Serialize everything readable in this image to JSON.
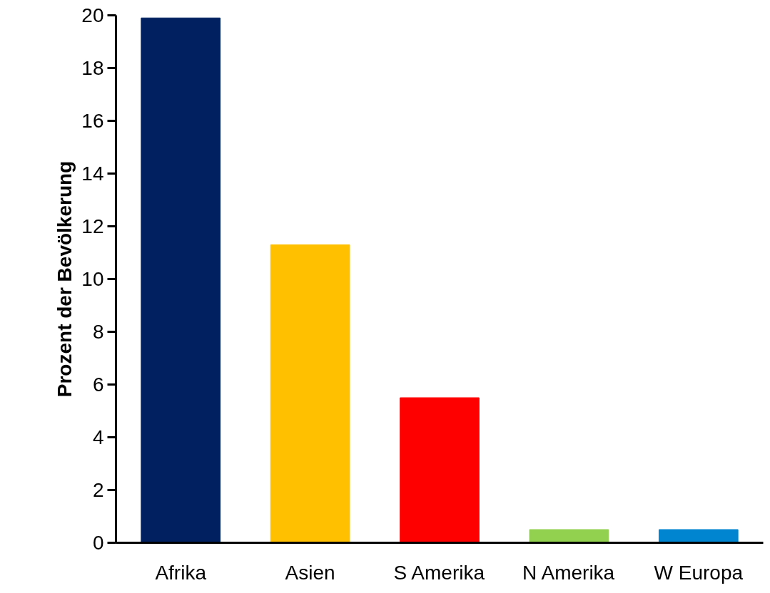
{
  "chart_data": {
    "type": "bar",
    "ylabel": "Prozent der Bevölkerung",
    "categories": [
      "Afrika",
      "Asien",
      "S Amerika",
      "N Amerika",
      "W Europa"
    ],
    "values": [
      19.9,
      11.3,
      5.5,
      0.5,
      0.5
    ],
    "colors": [
      "#002060",
      "#ffc000",
      "#ff0000",
      "#92d050",
      "#0085d0"
    ],
    "ylim": [
      0,
      20
    ],
    "yticks": [
      0,
      2,
      4,
      6,
      8,
      10,
      12,
      14,
      16,
      18,
      20
    ],
    "grid": false
  }
}
